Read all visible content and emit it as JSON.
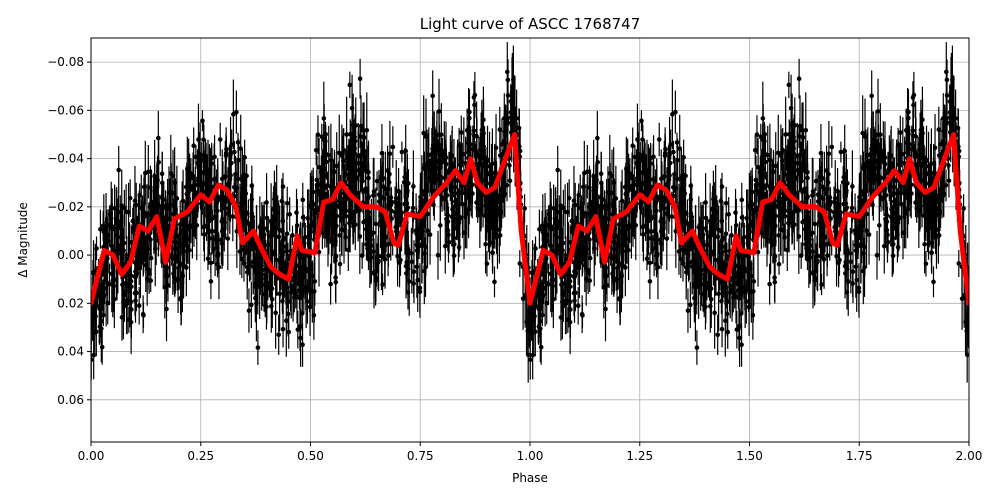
{
  "chart_data": {
    "type": "scatter",
    "title": "Light curve of ASCC 1768747",
    "xlabel": "Phase",
    "ylabel": "Δ Magnitude",
    "xlim": [
      0,
      2
    ],
    "ylim": [
      0.0775,
      -0.09
    ],
    "y_inverted": true,
    "grid": true,
    "xticks": [
      0,
      0.25,
      0.5,
      0.75,
      1.0,
      1.25,
      1.5,
      1.75,
      2.0
    ],
    "xtick_labels": [
      "0.00",
      "0.25",
      "0.50",
      "0.75",
      "1.00",
      "1.25",
      "1.50",
      "1.75",
      "2.00"
    ],
    "yticks": [
      -0.08,
      -0.06,
      -0.04,
      -0.02,
      0.0,
      0.02,
      0.04,
      0.06
    ],
    "ytick_labels": [
      "−0.08",
      "−0.06",
      "−0.04",
      "−0.02",
      "0.00",
      "0.02",
      "0.04",
      "0.06"
    ],
    "series": [
      {
        "type": "errorbar-scatter",
        "color": "#000000",
        "description_of_points": "dense phased photometry, scatter roughly ±0.04 mag around the model, repeated for phase 1–2",
        "typical_error": 0.01
      },
      {
        "type": "line",
        "color": "#ff0000",
        "repeat_period": 1,
        "phase": [
          0,
          0.03,
          0.05,
          0.07,
          0.09,
          0.11,
          0.13,
          0.15,
          0.17,
          0.19,
          0.22,
          0.25,
          0.27,
          0.29,
          0.31,
          0.33,
          0.345,
          0.37,
          0.39,
          0.41,
          0.43,
          0.45,
          0.47,
          0.48,
          0.51,
          0.53,
          0.55,
          0.57,
          0.59,
          0.62,
          0.65,
          0.67,
          0.69,
          0.7,
          0.72,
          0.75,
          0.78,
          0.81,
          0.83,
          0.85,
          0.865,
          0.88,
          0.9,
          0.92,
          0.94,
          0.965,
          0.98,
          1.0
        ],
        "values": [
          0.02,
          -0.002,
          0.0,
          0.008,
          0.003,
          -0.012,
          -0.01,
          -0.016,
          0.003,
          -0.015,
          -0.018,
          -0.025,
          -0.022,
          -0.029,
          -0.027,
          -0.02,
          -0.005,
          -0.01,
          -0.002,
          0.005,
          0.008,
          0.01,
          -0.008,
          -0.002,
          -0.001,
          -0.022,
          -0.023,
          -0.03,
          -0.025,
          -0.02,
          -0.02,
          -0.018,
          -0.005,
          -0.004,
          -0.017,
          -0.016,
          -0.024,
          -0.03,
          -0.035,
          -0.03,
          -0.04,
          -0.03,
          -0.026,
          -0.028,
          -0.038,
          -0.05,
          -0.01,
          0.02
        ]
      }
    ]
  }
}
